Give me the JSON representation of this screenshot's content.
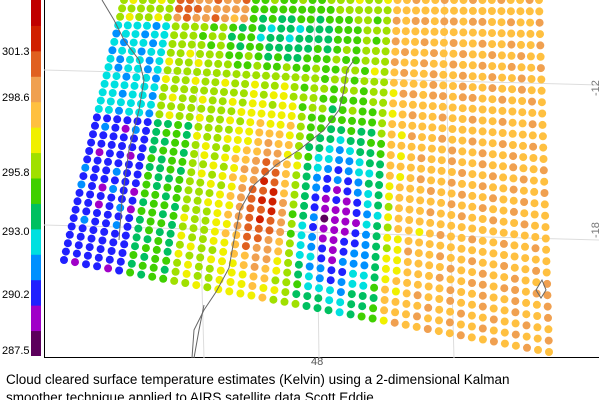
{
  "chart_data": {
    "type": "scatter",
    "title": "",
    "colorbar": {
      "ticks": [
        "301.3",
        "298.6",
        "295.8",
        "293.0",
        "290.2",
        "287.5"
      ],
      "colors": [
        "#5c005c",
        "#a000c8",
        "#2020ff",
        "#0090ff",
        "#00e0e0",
        "#00c060",
        "#40d000",
        "#a0e000",
        "#f0f000",
        "#ffc040",
        "#f0a050",
        "#e06020",
        "#d02000",
        "#c00000"
      ]
    },
    "lat_ticks": [
      "-12",
      "-18"
    ],
    "lon_ticks": [
      "48"
    ]
  },
  "caption": {
    "line1": "Cloud cleared surface temperature estimates (Kelvin) using a 2-dimensional Kalman",
    "line2": "smoother technique applied to AIRS satellite data                                                          Scott Eddie"
  }
}
